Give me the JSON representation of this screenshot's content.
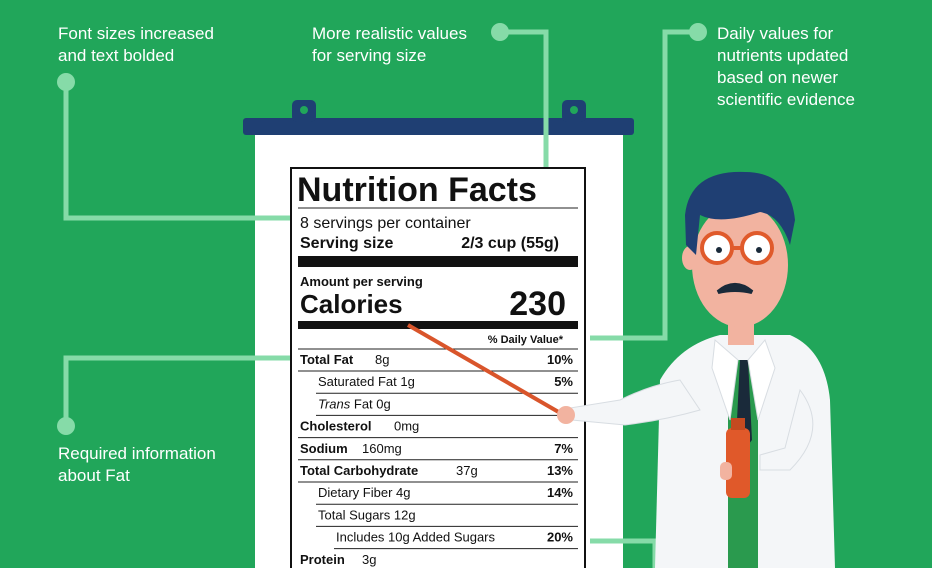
{
  "annotations": {
    "fonts": [
      "Font sizes increased",
      "and text bolded"
    ],
    "serving": [
      "More realistic values",
      "for serving size"
    ],
    "daily": [
      "Daily values for",
      "nutrients updated",
      "based on newer",
      "scientific evidence"
    ],
    "fat": [
      "Required information",
      "about Fat"
    ]
  },
  "label": {
    "title": "Nutrition Facts",
    "servings": "8 servings per container",
    "serving_size_label": "Serving size",
    "serving_size": "2/3 cup (55g)",
    "amount_per_serving": "Amount per serving",
    "calories_label": "Calories",
    "calories": "230",
    "dv_header": "% Daily Value*",
    "rows": [
      {
        "name": "Total Fat",
        "amount": "8g",
        "dv": "10%"
      },
      {
        "name": "Saturated Fat 1g",
        "dv": "5%"
      },
      {
        "italic": "Trans",
        "name": "Fat 0g"
      },
      {
        "name": "Cholesterol",
        "amount": "0mg"
      },
      {
        "name": "Sodium",
        "amount": "160mg",
        "dv": "7%"
      },
      {
        "name": "Total Carbohydrate",
        "amount": "37g",
        "dv": "13%"
      },
      {
        "name": "Dietary Fiber 4g",
        "dv": "14%"
      },
      {
        "name": "Total Sugars 12g"
      },
      {
        "name": "Includes 10g Added Sugars",
        "dv": "20%"
      },
      {
        "name": "Protein",
        "amount": "3g"
      }
    ]
  }
}
